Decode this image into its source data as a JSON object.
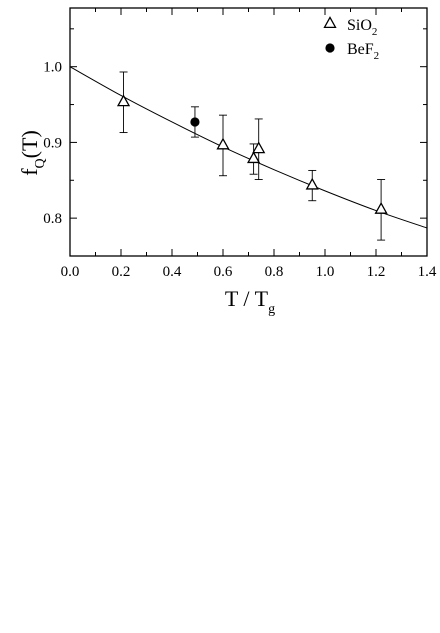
{
  "chart_data": {
    "type": "scatter",
    "xlabel": {
      "main": "T / T",
      "sub": "g"
    },
    "ylabel": {
      "main": "f",
      "sub": "Q",
      "suffix": "(T)"
    },
    "xlim": [
      0.0,
      1.4
    ],
    "ylim": [
      0.75,
      1.0775
    ],
    "x_ticks": [
      0.0,
      0.2,
      0.4,
      0.6,
      0.8,
      1.0,
      1.2,
      1.4
    ],
    "x_tick_labels": [
      "0.0",
      "0.2",
      "0.4",
      "0.6",
      "0.8",
      "1.0",
      "1.2",
      "1.4"
    ],
    "y_ticks": [
      0.8,
      0.9,
      1.0
    ],
    "y_tick_labels": [
      "0.8",
      "0.9",
      "1.0"
    ],
    "grid": false,
    "legend_position": "top-right",
    "series": [
      {
        "name": "SiO",
        "name_sub": "2",
        "marker": "open-triangle",
        "points": [
          {
            "x": 0.21,
            "y": 0.953,
            "err": 0.04
          },
          {
            "x": 0.6,
            "y": 0.896,
            "err": 0.04
          },
          {
            "x": 0.72,
            "y": 0.878,
            "err": 0.02
          },
          {
            "x": 0.74,
            "y": 0.891,
            "err": 0.04
          },
          {
            "x": 0.95,
            "y": 0.843,
            "err": 0.02
          },
          {
            "x": 1.22,
            "y": 0.811,
            "err": 0.04
          }
        ]
      },
      {
        "name": "BeF",
        "name_sub": "2",
        "marker": "filled-circle",
        "points": [
          {
            "x": 0.49,
            "y": 0.927,
            "err": 0.02
          }
        ]
      }
    ],
    "fit_curve": {
      "x": [
        0.0,
        0.2,
        0.4,
        0.6,
        0.8,
        1.0,
        1.2,
        1.4
      ],
      "y": [
        1.0,
        0.962,
        0.927,
        0.894,
        0.864,
        0.836,
        0.81,
        0.787
      ]
    }
  }
}
